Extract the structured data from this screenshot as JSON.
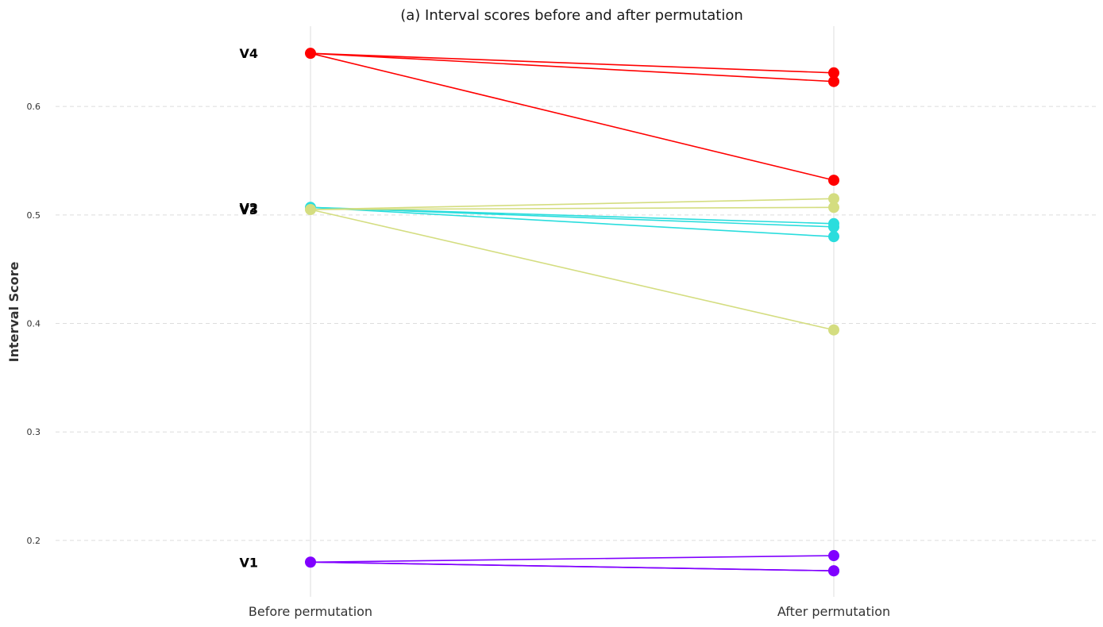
{
  "chart_data": {
    "type": "line",
    "title": "(a) Interval scores before and after permutation",
    "xlabel": "",
    "ylabel": "Interval Score",
    "categories": [
      "Before permutation",
      "After permutation"
    ],
    "ylim": [
      0.148,
      0.674
    ],
    "yticks": [
      0.2,
      0.3,
      0.4,
      0.5,
      0.6
    ],
    "grid": true,
    "series": [
      {
        "name": "V1",
        "color": "#8000ff",
        "before": 0.18,
        "after": [
          0.186,
          0.172,
          0.172
        ]
      },
      {
        "name": "V2",
        "color": "#2adddd",
        "before": 0.507,
        "after": [
          0.492,
          0.489,
          0.48
        ]
      },
      {
        "name": "V3",
        "color": "#d4dd80",
        "before": 0.505,
        "after": [
          0.515,
          0.507,
          0.394
        ]
      },
      {
        "name": "V4",
        "color": "#ff0000",
        "before": 0.649,
        "after": [
          0.631,
          0.623,
          0.532
        ]
      }
    ]
  }
}
